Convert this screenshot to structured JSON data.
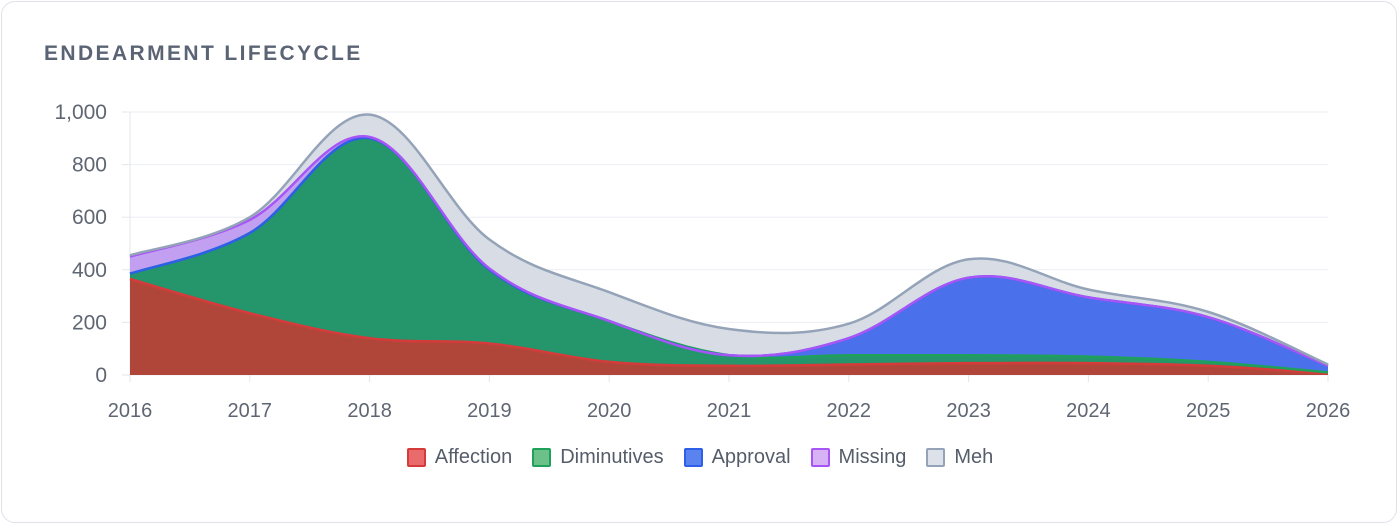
{
  "chart_data": {
    "type": "area",
    "title": "ENDEARMENT LIFECYCLE",
    "x": [
      "2016",
      "2017",
      "2018",
      "2019",
      "2020",
      "2021",
      "2022",
      "2023",
      "2024",
      "2025",
      "2026"
    ],
    "ylim": [
      0,
      1000
    ],
    "yticks": [
      "0",
      "200",
      "400",
      "600",
      "800",
      "1,000"
    ],
    "ytick_values": [
      0,
      200,
      400,
      600,
      800,
      1000
    ],
    "stacked": true,
    "grid": true,
    "legend_position": "bottom",
    "series": [
      {
        "name": "Affection",
        "values": [
          365,
          235,
          140,
          120,
          50,
          35,
          40,
          45,
          45,
          35,
          5
        ],
        "fill": "#b0463a",
        "stroke": "#d63b3b",
        "swatch": "#ea6b6b"
      },
      {
        "name": "Diminutives",
        "values": [
          20,
          305,
          760,
          280,
          155,
          40,
          35,
          30,
          25,
          15,
          5
        ],
        "fill": "#25956b",
        "stroke": "#1fa05b",
        "swatch": "#6cc08a"
      },
      {
        "name": "Approval",
        "values": [
          0,
          0,
          0,
          0,
          0,
          0,
          65,
          295,
          225,
          170,
          25
        ],
        "fill": "#4a70ec",
        "stroke": "#2e5fe8",
        "swatch": "#5b83f0"
      },
      {
        "name": "Missing",
        "values": [
          65,
          50,
          5,
          5,
          0,
          0,
          0,
          0,
          0,
          0,
          0
        ],
        "fill": "#c29ff1",
        "stroke": "#a855f7",
        "swatch": "#d7b3f5"
      },
      {
        "name": "Meh",
        "values": [
          5,
          10,
          85,
          110,
          110,
          100,
          55,
          70,
          30,
          20,
          5
        ],
        "fill": "#d8dde5",
        "stroke": "#94a3b8",
        "swatch": "#dde2ea"
      }
    ]
  }
}
